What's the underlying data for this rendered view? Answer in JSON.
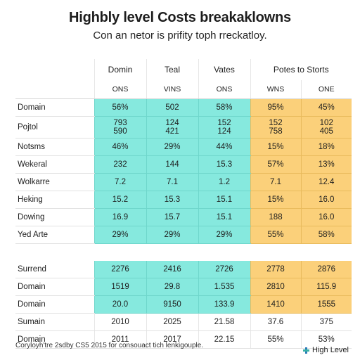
{
  "chart_data": {
    "type": "table",
    "title": "Highbly level Costs breakaklowns",
    "subtitle": "Con an netor is prifity toph rreckatloy.",
    "columns": [
      "Domin",
      "Teal",
      "Vates",
      "Potes to Storts",
      ""
    ],
    "subheaders": [
      "ONS",
      "VINS",
      "ONS",
      "WNS",
      "ONE"
    ],
    "highlight_colors": {
      "cyan": "#86e9de",
      "amber": "#fbd07a"
    },
    "rows": [
      {
        "label": "Domain",
        "values": [
          "56%",
          "502",
          "58%",
          "95%",
          "45%"
        ]
      },
      {
        "label": "Pojtol",
        "values": [
          "793\n590",
          "124\n421",
          "152\n124",
          "152\n758",
          "102\n405"
        ]
      },
      {
        "label": "Notsms",
        "values": [
          "46%",
          "29%",
          "44%",
          "15%",
          "18%"
        ]
      },
      {
        "label": "Wekeral",
        "values": [
          "232",
          "144",
          "15.3",
          "57%",
          "13%"
        ]
      },
      {
        "label": "Wolkarre",
        "values": [
          "7.2",
          "7.1",
          "1.2",
          "7.1",
          "12.4"
        ]
      },
      {
        "label": "Heking",
        "values": [
          "15.2",
          "15.3",
          "15.1",
          "15%",
          "16.0"
        ]
      },
      {
        "label": "Dowing",
        "values": [
          "16.9",
          "15.7",
          "15.1",
          "188",
          "16.0"
        ]
      },
      {
        "label": "Yed Arte",
        "values": [
          "29%",
          "29%",
          "29%",
          "55%",
          "58%"
        ]
      }
    ],
    "rows2": [
      {
        "label": "Surrend",
        "values": [
          "2276",
          "2416",
          "2726",
          "2778",
          "2876"
        ],
        "highlight": true
      },
      {
        "label": "Domain",
        "values": [
          "1519",
          "29.8",
          "1.535",
          "2810",
          "115.9"
        ],
        "highlight": true
      },
      {
        "label": "Domain",
        "values": [
          "20.0",
          "9150",
          "133.9",
          "1410",
          "1555"
        ],
        "highlight": true
      },
      {
        "label": "Sumain",
        "values": [
          "2010",
          "2025",
          "21.58",
          "37.6",
          "375"
        ],
        "highlight": false
      },
      {
        "label": "Domain",
        "values": [
          "2011",
          "2017",
          "22.15",
          "55%",
          "53%"
        ],
        "highlight": false
      }
    ]
  },
  "footer": {
    "note": "Coryloyh'tre 2sdby CS5 2015 for consouact tich lenkigouple.",
    "legend_label": "High Level",
    "legend_icon": "pinwheel-icon"
  }
}
